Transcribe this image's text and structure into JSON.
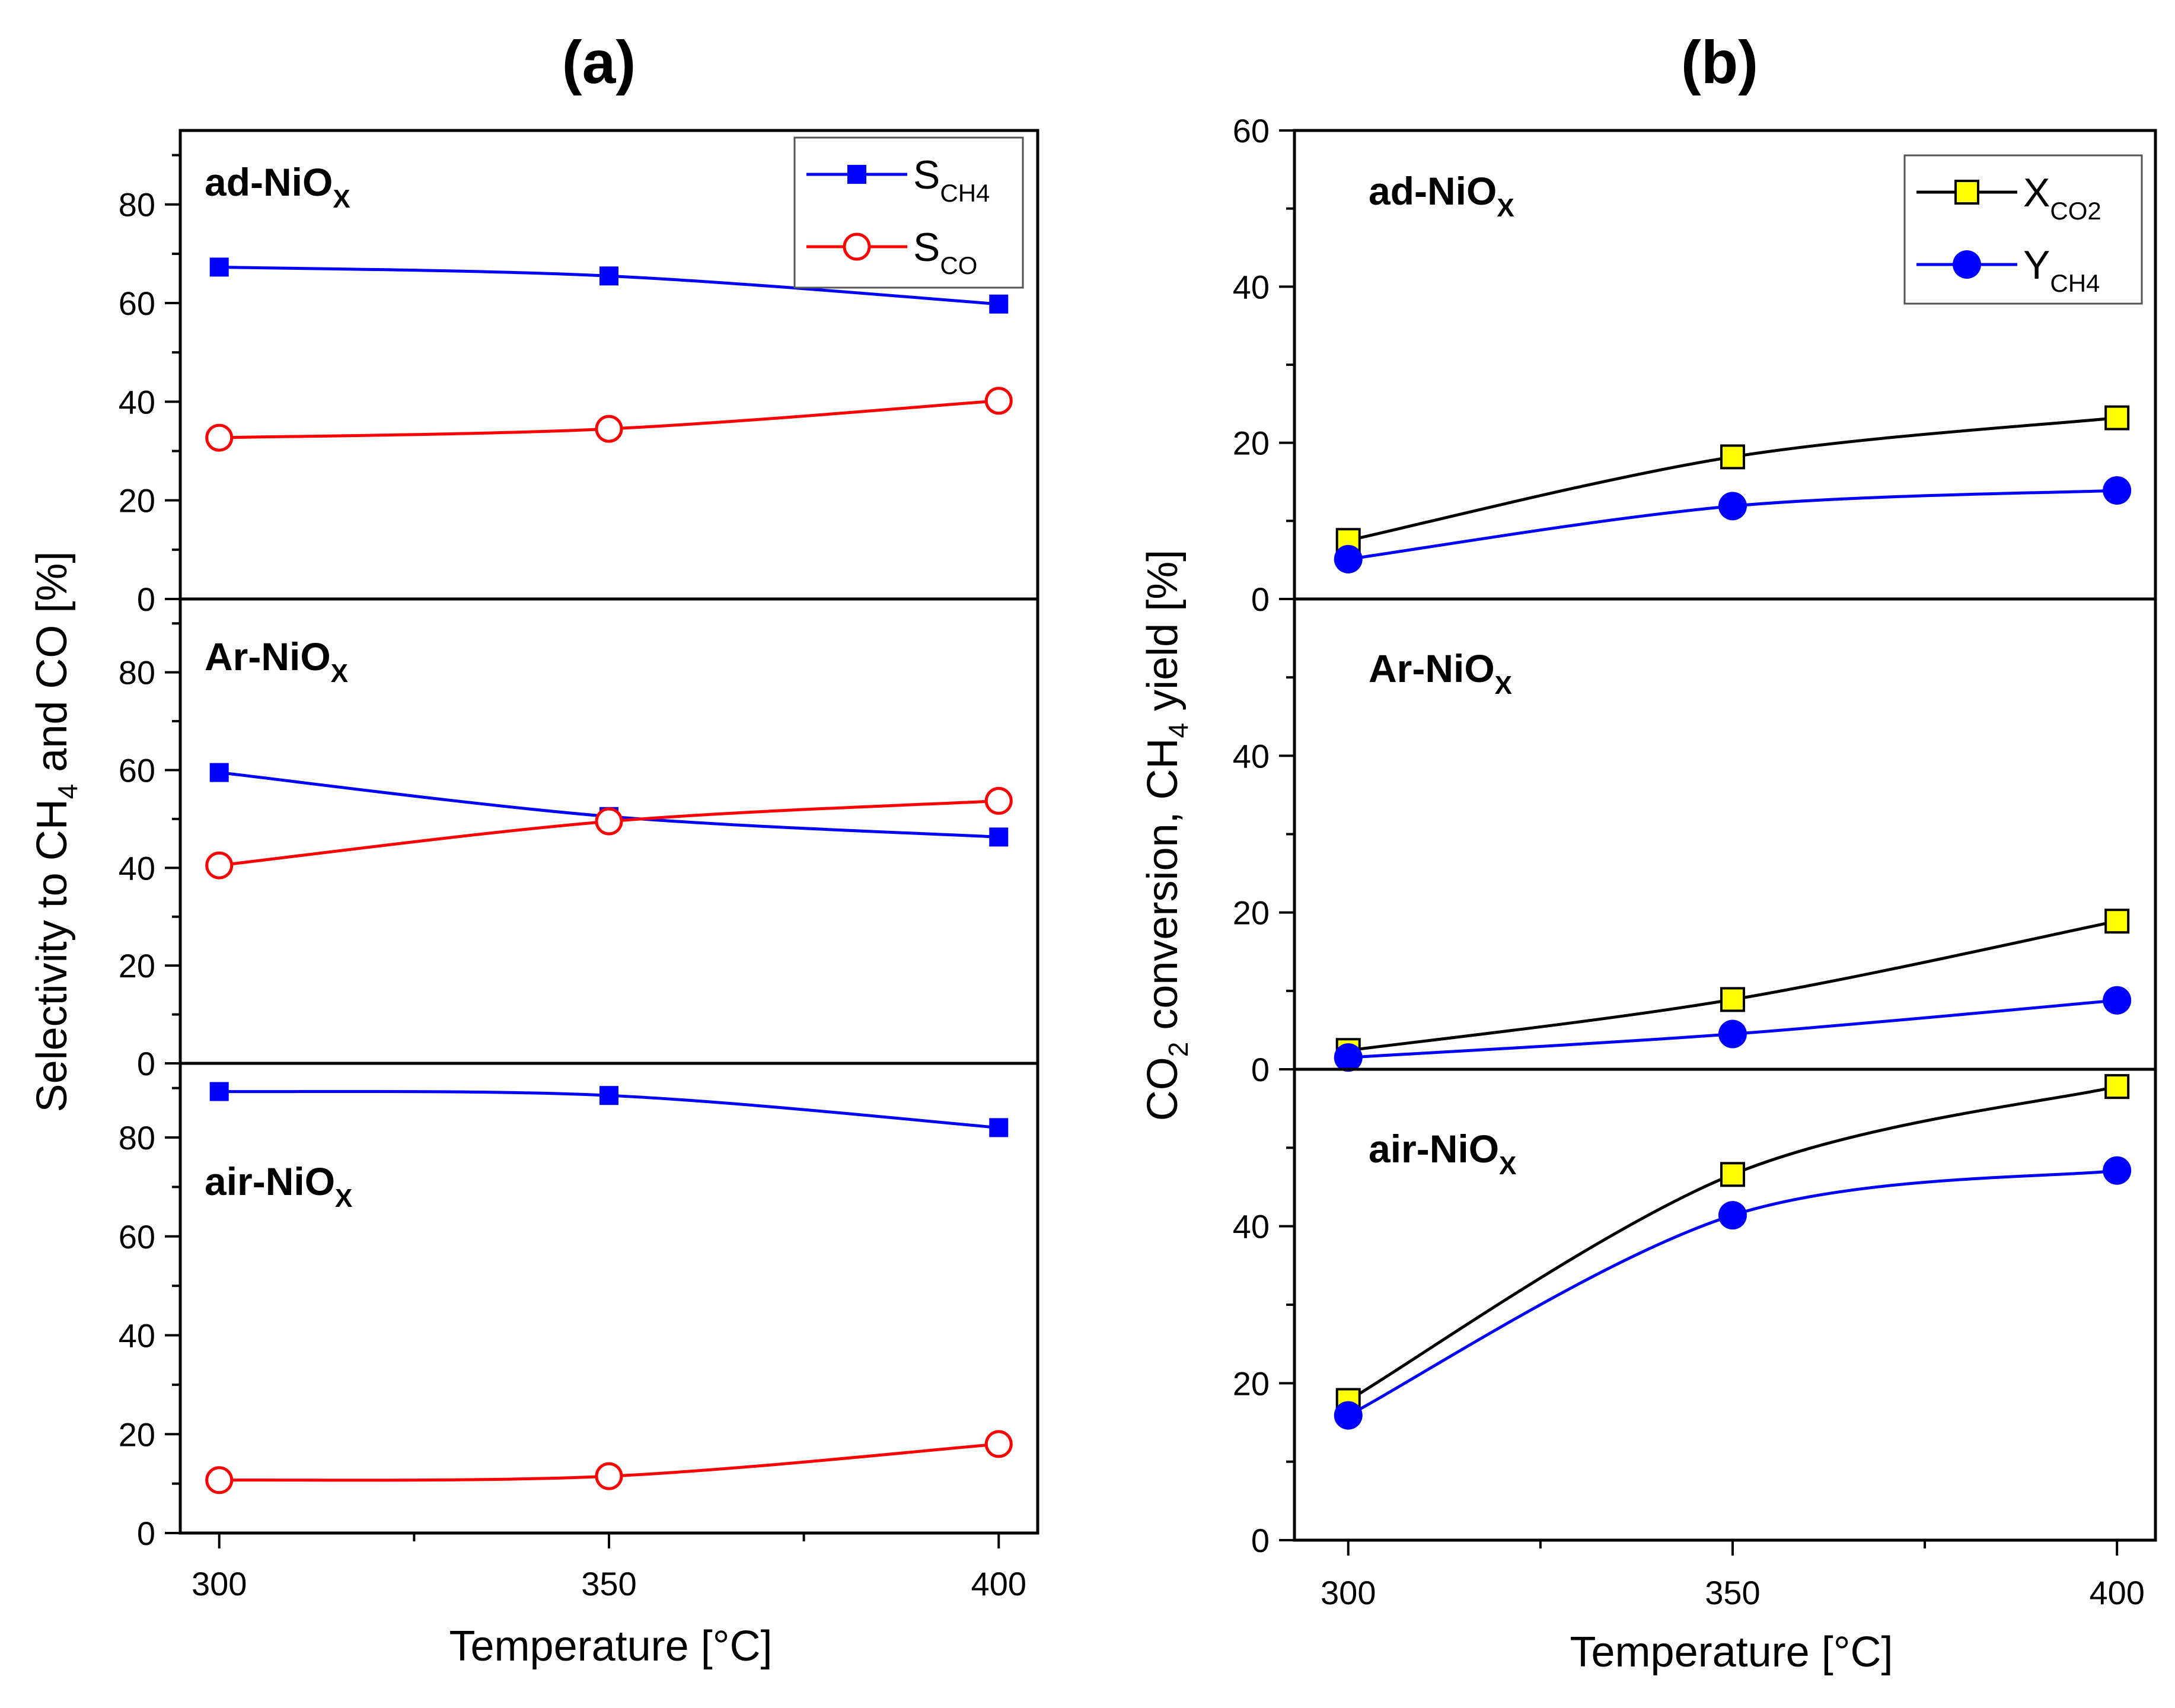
{
  "colors": {
    "blue": "#0000ff",
    "red": "#ff0000",
    "black": "#000000",
    "yellow": "#ffff00"
  },
  "chart_data": [
    {
      "panel": "(a)",
      "type": "line",
      "xlabel": "Temperature [°C]",
      "ylabel_parts": [
        "Selectivity to CH",
        "4",
        " and CO [%]"
      ],
      "x_ticks": [
        300,
        350,
        400
      ],
      "x_minor_ticks": [
        325,
        375
      ],
      "xlim": [
        295,
        405
      ],
      "ylim": [
        0,
        95
      ],
      "y_ticks": [
        0,
        20,
        40,
        60,
        80
      ],
      "legend": {
        "placement": "top-right of first subplot",
        "entries": [
          {
            "main": "S",
            "sub": "CH4",
            "series": "S_CH4"
          },
          {
            "main": "S",
            "sub": "CO",
            "series": "S_CO"
          }
        ]
      },
      "subplots": [
        {
          "label_main": "ad-NiO",
          "label_sub": "X",
          "series": [
            {
              "name": "S_CH4",
              "marker": "filled-square",
              "color": "#0000ff",
              "x": [
                300,
                350,
                400
              ],
              "y": [
                67.3,
                65.5,
                59.8
              ]
            },
            {
              "name": "S_CO",
              "marker": "open-circle",
              "color": "#ff0000",
              "x": [
                300,
                350,
                400
              ],
              "y": [
                32.7,
                34.5,
                40.2
              ]
            }
          ]
        },
        {
          "label_main": "Ar-NiO",
          "label_sub": "X",
          "series": [
            {
              "name": "S_CH4",
              "marker": "filled-square",
              "color": "#0000ff",
              "x": [
                300,
                350,
                400
              ],
              "y": [
                59.5,
                50.5,
                46.3
              ]
            },
            {
              "name": "S_CO",
              "marker": "open-circle",
              "color": "#ff0000",
              "x": [
                300,
                350,
                400
              ],
              "y": [
                40.5,
                49.5,
                53.7
              ]
            }
          ]
        },
        {
          "label_main": "air-NiO",
          "label_sub": "X",
          "series": [
            {
              "name": "S_CH4",
              "marker": "filled-square",
              "color": "#0000ff",
              "x": [
                300,
                350,
                400
              ],
              "y": [
                89.3,
                88.5,
                82.0
              ]
            },
            {
              "name": "S_CO",
              "marker": "open-circle",
              "color": "#ff0000",
              "x": [
                300,
                350,
                400
              ],
              "y": [
                10.7,
                11.5,
                18.0
              ]
            }
          ]
        }
      ]
    },
    {
      "panel": "(b)",
      "type": "line",
      "xlabel": "Temperature [°C]",
      "ylabel_parts": [
        "CO",
        "2",
        " conversion, CH",
        "4",
        " yield [%]"
      ],
      "x_ticks": [
        300,
        350,
        400
      ],
      "x_minor_ticks": [
        325,
        375
      ],
      "xlim": [
        293,
        405
      ],
      "ylim": [
        0,
        60
      ],
      "y_ticks_top": [
        0,
        20,
        40,
        60
      ],
      "y_ticks": [
        0,
        20,
        40
      ],
      "legend": {
        "placement": "top-right of first subplot",
        "entries": [
          {
            "main": "X",
            "sub": "CO2",
            "series": "X_CO2"
          },
          {
            "main": "Y",
            "sub": "CH4",
            "series": "Y_CH4"
          }
        ]
      },
      "subplots": [
        {
          "label_main": "ad-NiO",
          "label_sub": "X",
          "series": [
            {
              "name": "X_CO2",
              "marker": "yellow-square",
              "color": "#000000",
              "x": [
                300,
                350,
                400
              ],
              "y": [
                7.5,
                18.2,
                23.2
              ]
            },
            {
              "name": "Y_CH4",
              "marker": "filled-circle",
              "color": "#0000ff",
              "x": [
                300,
                350,
                400
              ],
              "y": [
                5.1,
                11.9,
                13.9
              ]
            }
          ]
        },
        {
          "label_main": "Ar-NiO",
          "label_sub": "X",
          "series": [
            {
              "name": "X_CO2",
              "marker": "yellow-square",
              "color": "#000000",
              "x": [
                300,
                350,
                400
              ],
              "y": [
                2.4,
                8.9,
                18.9
              ]
            },
            {
              "name": "Y_CH4",
              "marker": "filled-circle",
              "color": "#0000ff",
              "x": [
                300,
                350,
                400
              ],
              "y": [
                1.5,
                4.5,
                8.8
              ]
            }
          ]
        },
        {
          "label_main": "air-NiO",
          "label_sub": "X",
          "series": [
            {
              "name": "X_CO2",
              "marker": "yellow-square",
              "color": "#000000",
              "x": [
                300,
                350,
                400
              ],
              "y": [
                17.8,
                46.6,
                57.8
              ]
            },
            {
              "name": "Y_CH4",
              "marker": "filled-circle",
              "color": "#0000ff",
              "x": [
                300,
                350,
                400
              ],
              "y": [
                15.9,
                41.4,
                47.1
              ]
            }
          ]
        }
      ]
    }
  ]
}
